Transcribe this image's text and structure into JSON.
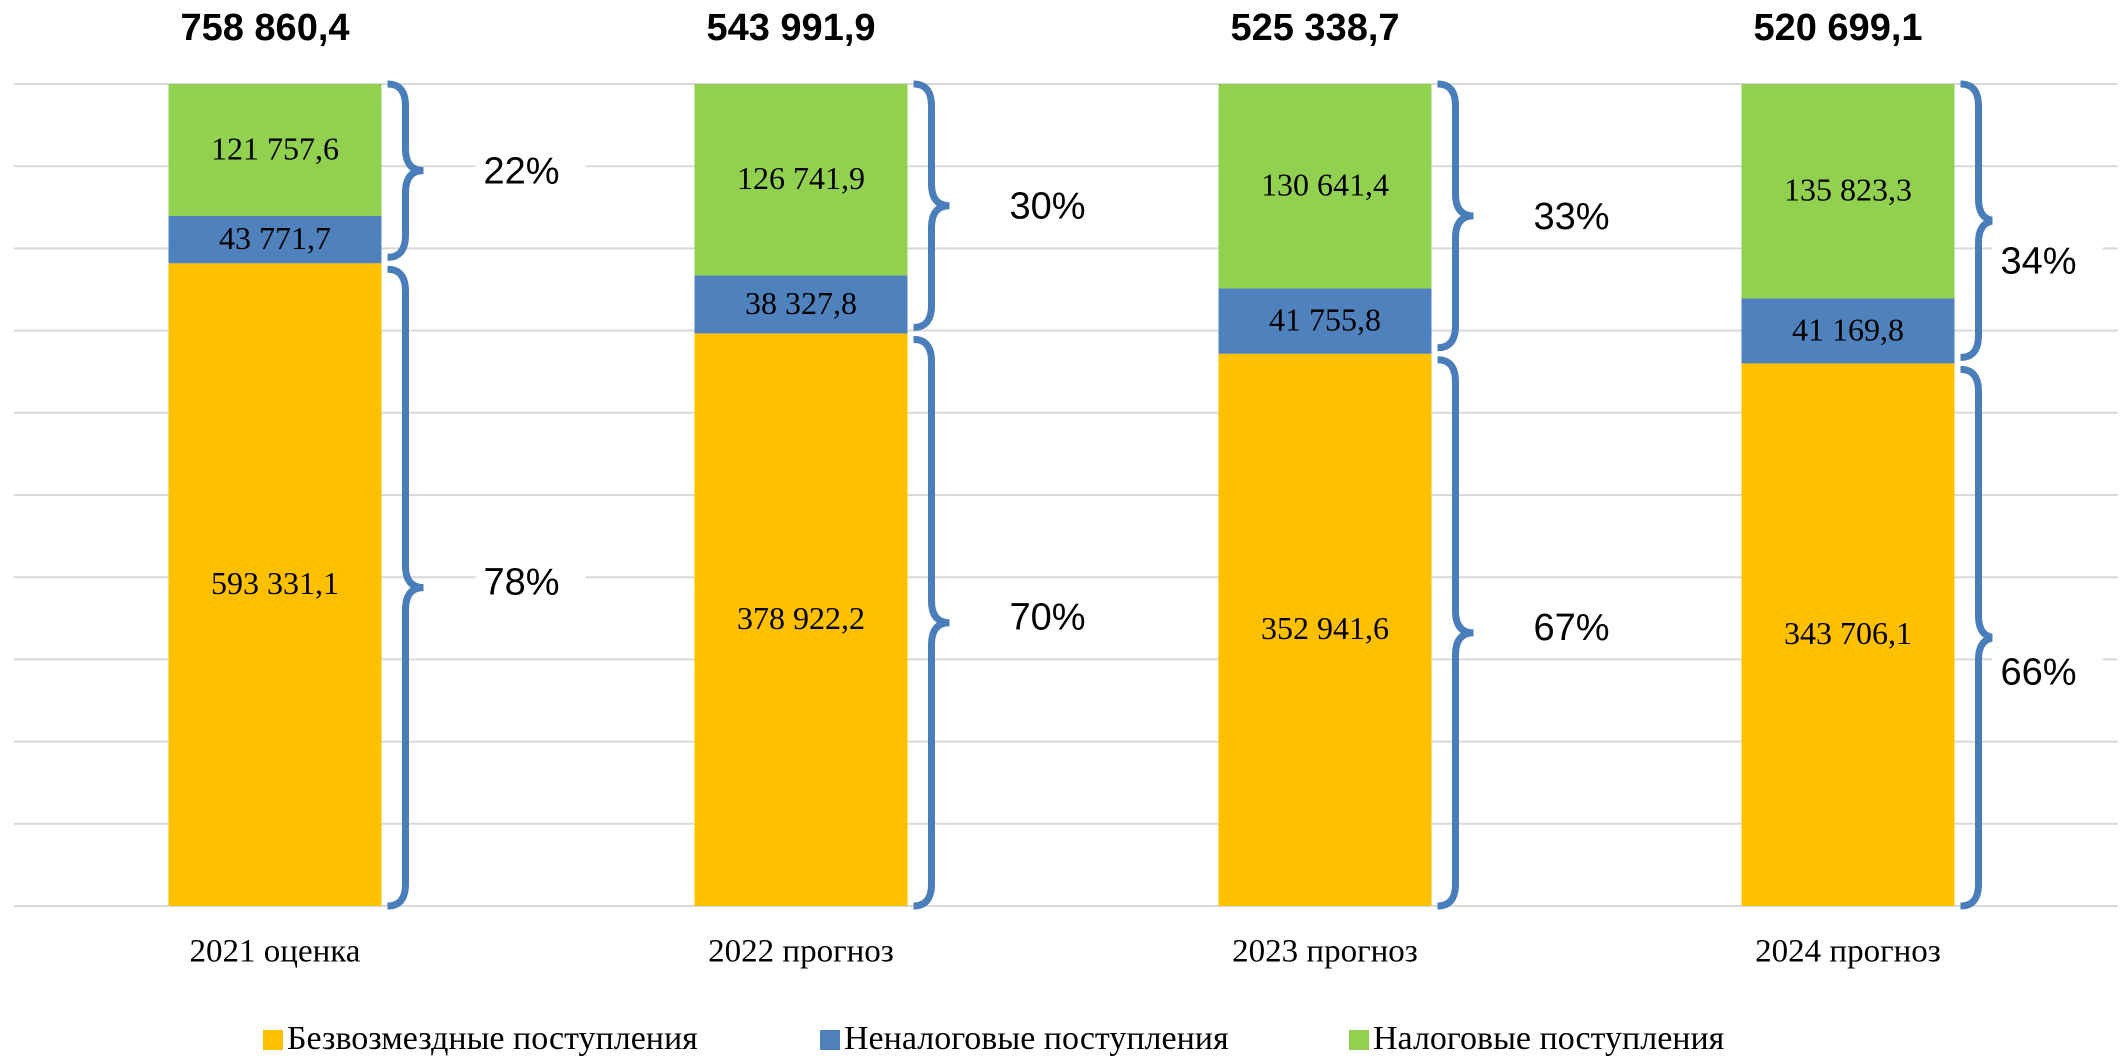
{
  "chart_data": {
    "type": "bar",
    "stacking": "percent",
    "categories": [
      "2021 оценка",
      "2022 прогноз",
      "2023 прогноз",
      "2024 прогноз"
    ],
    "series": [
      {
        "name": "Безвозмездные поступления",
        "color": "#ffc000",
        "values": [
          593331.1,
          378922.2,
          352941.6,
          343706.1
        ],
        "value_labels": [
          "593 331,1",
          "378 922,2",
          "352 941,6",
          "343 706,1"
        ]
      },
      {
        "name": "Неналоговые поступления",
        "color": "#4f81bd",
        "values": [
          43771.7,
          38327.8,
          41755.8,
          41169.8
        ],
        "value_labels": [
          "43 771,7",
          "38 327,8",
          "41 755,8",
          "41 169,8"
        ]
      },
      {
        "name": "Налоговые поступления",
        "color": "#92d050",
        "values": [
          121757.6,
          126741.9,
          130641.4,
          135823.3
        ],
        "value_labels": [
          "121 757,6",
          "126 741,9",
          "130 641,4",
          "135 823,3"
        ]
      }
    ],
    "totals": {
      "values": [
        758860.4,
        543991.9,
        525338.7,
        520699.1
      ],
      "value_labels": [
        "758 860,4",
        "543 991,9",
        "525 338,7",
        "520 699,1"
      ]
    },
    "upper_share": {
      "values": [
        22,
        30,
        33,
        34
      ],
      "value_labels": [
        "22%",
        "30%",
        "33%",
        "34%"
      ]
    },
    "lower_share": {
      "values": [
        78,
        70,
        67,
        66
      ],
      "value_labels": [
        "78%",
        "70%",
        "67%",
        "66%"
      ]
    },
    "ylim": [
      0,
      100
    ],
    "grid": [
      0,
      10,
      20,
      30,
      40,
      50,
      60,
      70,
      80,
      90,
      100
    ],
    "brace_color": "#4a7ebb"
  }
}
